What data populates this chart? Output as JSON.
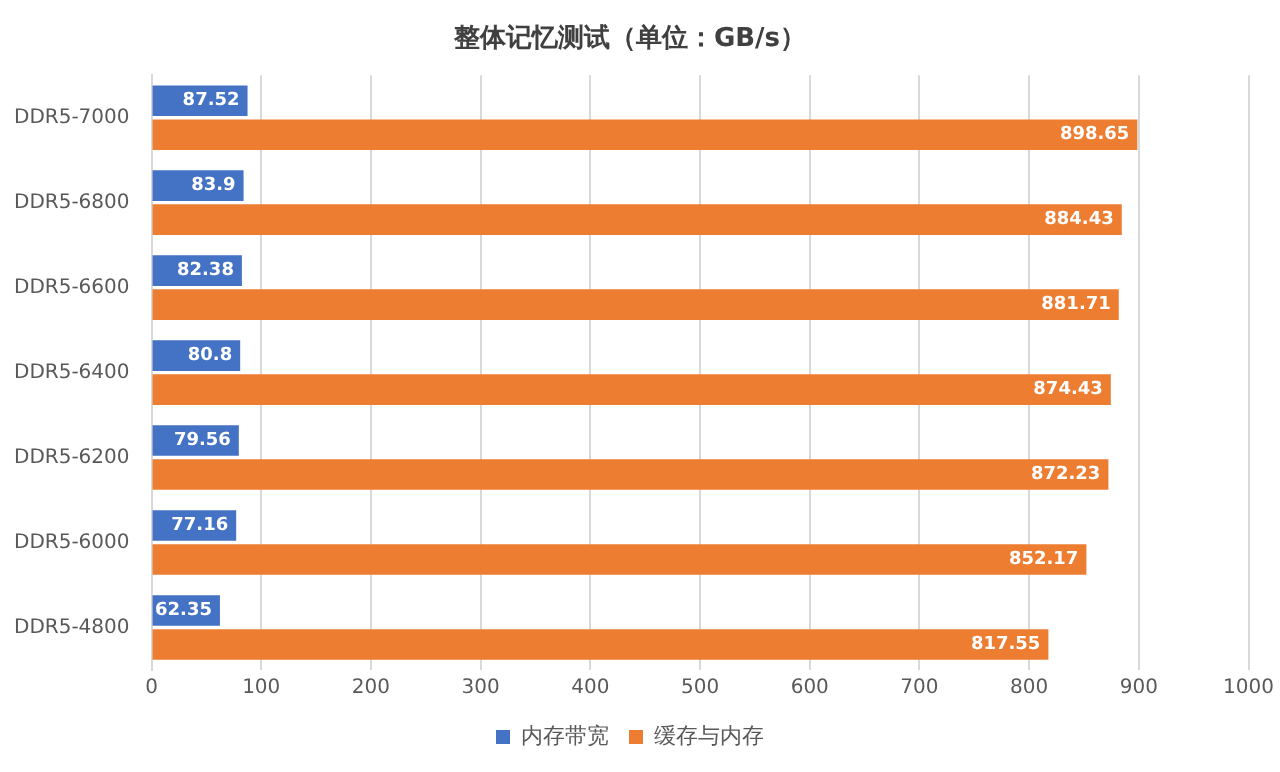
{
  "chart_data": {
    "type": "bar",
    "orientation": "horizontal",
    "title": "整体记忆测试（单位：GB/s）",
    "categories": [
      "DDR5-7000",
      "DDR5-6800",
      "DDR5-6600",
      "DDR5-6400",
      "DDR5-6200",
      "DDR5-6000",
      "DDR5-4800"
    ],
    "series": [
      {
        "name": "内存带宽",
        "color": "#4472c4",
        "values": [
          87.52,
          83.9,
          82.38,
          80.8,
          79.56,
          77.16,
          62.35
        ]
      },
      {
        "name": "缓存与内存",
        "color": "#ed7d31",
        "values": [
          898.65,
          884.43,
          881.71,
          874.43,
          872.23,
          852.17,
          817.55
        ]
      }
    ],
    "xlim": [
      0,
      1000
    ],
    "xticks": [
      0,
      100,
      200,
      300,
      400,
      500,
      600,
      700,
      800,
      900,
      1000
    ],
    "grid": "x",
    "legend": "bottom",
    "data_labels": true
  }
}
